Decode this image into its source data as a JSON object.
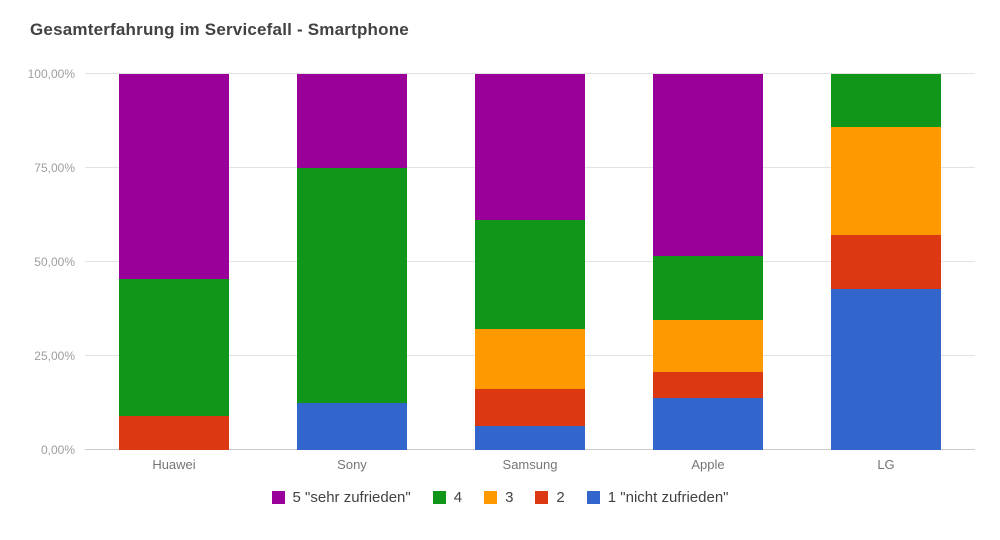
{
  "chart_data": {
    "type": "bar",
    "variant": "stacked-100-percent",
    "title": "Gesamterfahrung im Servicefall - Smartphone",
    "categories": [
      "Huawei",
      "Sony",
      "Samsung",
      "Apple",
      "LG"
    ],
    "series": [
      {
        "name": "1 \"nicht zufrieden\"",
        "color": "#3366CC",
        "values": [
          0,
          12.5,
          6.5,
          13.8,
          42.9
        ]
      },
      {
        "name": "2",
        "color": "#DC3912",
        "values": [
          9.1,
          0,
          9.7,
          6.9,
          14.3
        ]
      },
      {
        "name": "3",
        "color": "#FF9900",
        "values": [
          0,
          0,
          16.1,
          13.8,
          28.6
        ]
      },
      {
        "name": "4",
        "color": "#109618",
        "values": [
          36.4,
          62.5,
          28.9,
          17.2,
          14.2
        ]
      },
      {
        "name": "5 \"sehr zufrieden\"",
        "color": "#990099",
        "values": [
          54.5,
          25.0,
          38.8,
          48.3,
          0
        ]
      }
    ],
    "legend_order": [
      4,
      3,
      2,
      1,
      0
    ],
    "legend_position": "bottom",
    "y_ticks": [
      "0,00%",
      "25,00%",
      "50,00%",
      "75,00%",
      "100,00%"
    ],
    "y_tick_values": [
      0,
      25,
      50,
      75,
      100
    ],
    "ylim": [
      0,
      100
    ],
    "xlabel": "",
    "ylabel": "",
    "grid": true
  }
}
